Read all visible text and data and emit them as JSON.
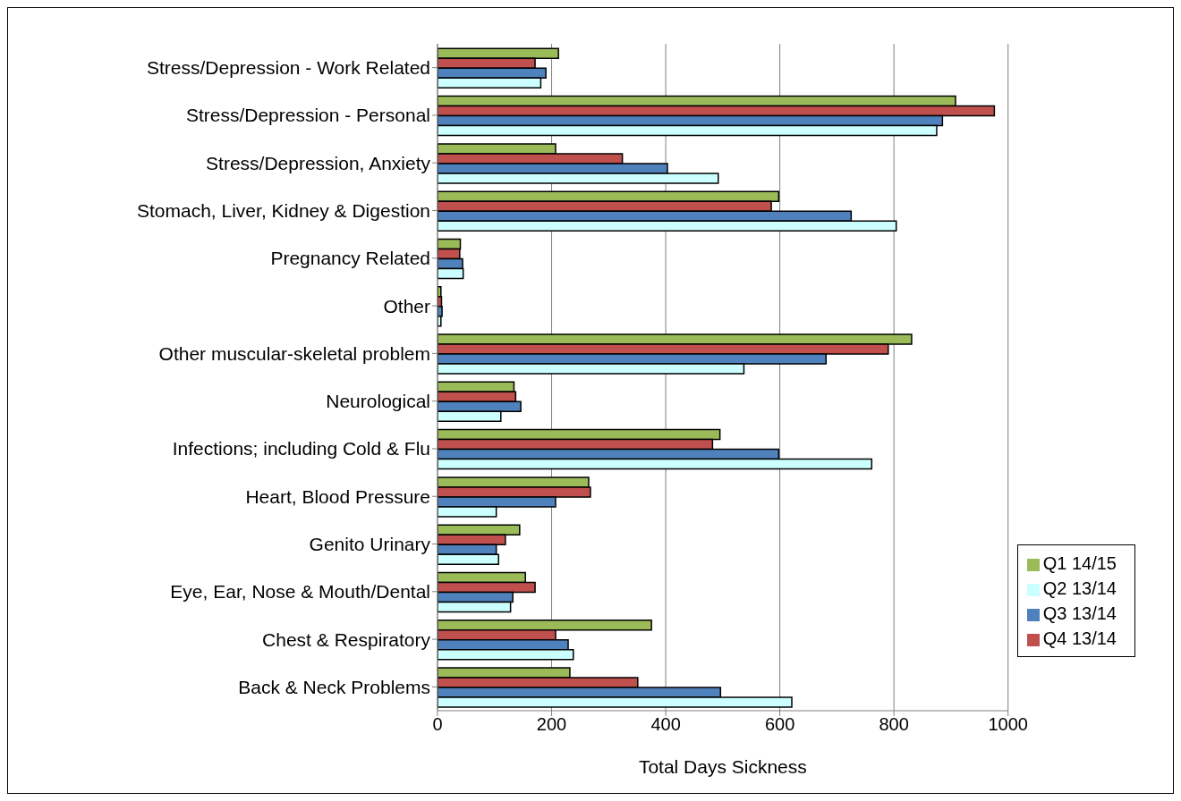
{
  "chart_data": {
    "type": "bar",
    "orientation": "horizontal",
    "xlabel": "Total Days Sickness",
    "categories": [
      "Stress/Depression - Work Related",
      "Stress/Depression - Personal",
      "Stress/Depression, Anxiety",
      "Stomach, Liver, Kidney & Digestion",
      "Pregnancy Related",
      "Other",
      "Other muscular-skeletal problem",
      "Neurological",
      "Infections; including Cold & Flu",
      "Heart, Blood Pressure",
      "Genito Urinary",
      "Eye, Ear, Nose & Mouth/Dental",
      "Chest & Respiratory",
      "Back & Neck Problems"
    ],
    "series": [
      {
        "name": "Q1 14/15",
        "color": "#9bbb59",
        "values": [
          212,
          908,
          207,
          598,
          40,
          6,
          831,
          134,
          495,
          265,
          144,
          154,
          375,
          232
        ]
      },
      {
        "name": "Q4 13/14",
        "color": "#c0504d",
        "values": [
          171,
          976,
          324,
          585,
          39,
          7,
          790,
          137,
          482,
          268,
          119,
          171,
          207,
          351
        ]
      },
      {
        "name": "Q3 13/14",
        "color": "#4f81bd",
        "values": [
          190,
          885,
          403,
          725,
          44,
          8,
          681,
          146,
          598,
          207,
          103,
          132,
          229,
          496
        ]
      },
      {
        "name": "Q2 13/14",
        "color": "#ccffff",
        "values": [
          181,
          875,
          492,
          804,
          45,
          6,
          537,
          111,
          761,
          103,
          107,
          128,
          238,
          621
        ]
      }
    ],
    "xlim": [
      0,
      1000
    ],
    "xticks": [
      0,
      200,
      400,
      600,
      800,
      1000
    ],
    "grid": "x",
    "legend": "bottom right"
  }
}
